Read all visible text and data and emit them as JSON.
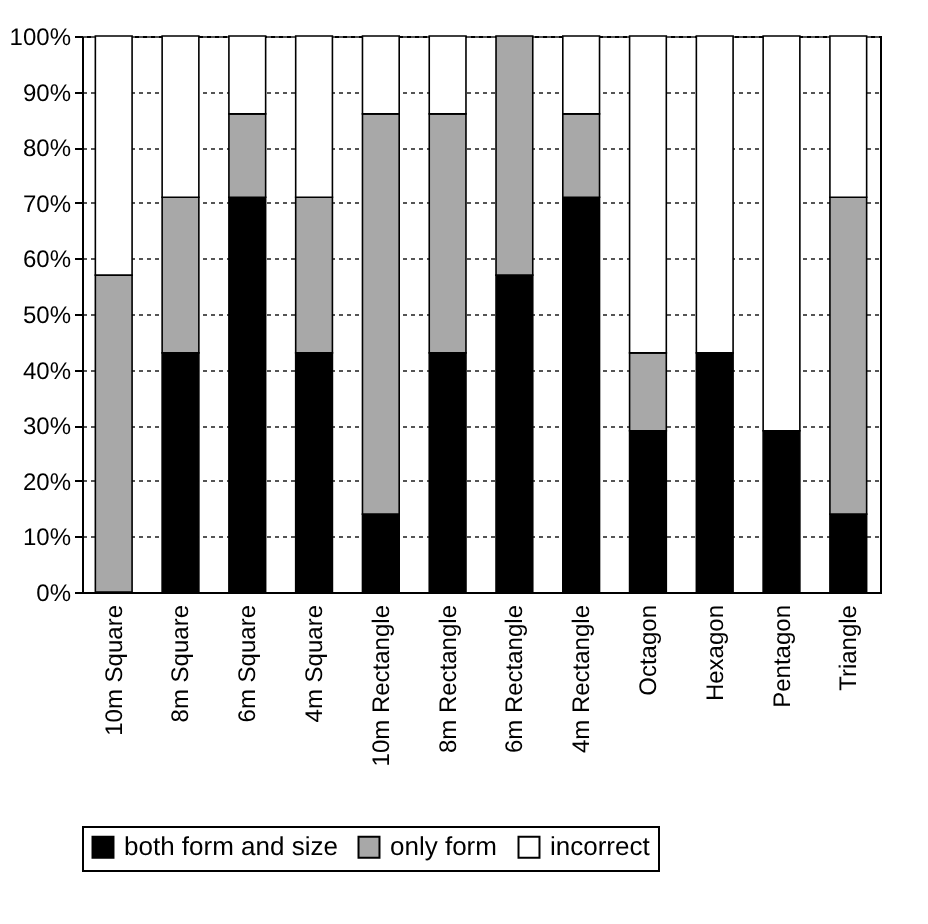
{
  "chart_data": {
    "type": "bar",
    "stacked": true,
    "categories": [
      "10m Square",
      "8m Square",
      "6m Square",
      "4m Square",
      "10m Rectangle",
      "8m Rectangle",
      "6m Rectangle",
      "4m Rectangle",
      "Octagon",
      "Hexagon",
      "Pentagon",
      "Triangle"
    ],
    "series": [
      {
        "name": "both form and size",
        "color": "#000000",
        "values": [
          0,
          43,
          71,
          43,
          14,
          43,
          57,
          71,
          29,
          43,
          29,
          14
        ]
      },
      {
        "name": "only form",
        "color": "#a8a8a8",
        "values": [
          57,
          28,
          15,
          28,
          72,
          43,
          43,
          15,
          14,
          0,
          0,
          57
        ]
      },
      {
        "name": "incorrect",
        "color": "#ffffff",
        "values": [
          43,
          29,
          14,
          29,
          14,
          14,
          0,
          14,
          57,
          57,
          71,
          29
        ]
      }
    ],
    "ylim": [
      0,
      100
    ],
    "yticks": [
      {
        "value": 0,
        "label": "0%"
      },
      {
        "value": 10,
        "label": "10%"
      },
      {
        "value": 20,
        "label": "20%"
      },
      {
        "value": 30,
        "label": "30%"
      },
      {
        "value": 40,
        "label": "40%"
      },
      {
        "value": 50,
        "label": "50%"
      },
      {
        "value": 60,
        "label": "60%"
      },
      {
        "value": 70,
        "label": "70%"
      },
      {
        "value": 80,
        "label": "80%"
      },
      {
        "value": 90,
        "label": "90%"
      },
      {
        "value": 100,
        "label": "100%"
      }
    ],
    "grid": "y",
    "legend": "bottom"
  }
}
